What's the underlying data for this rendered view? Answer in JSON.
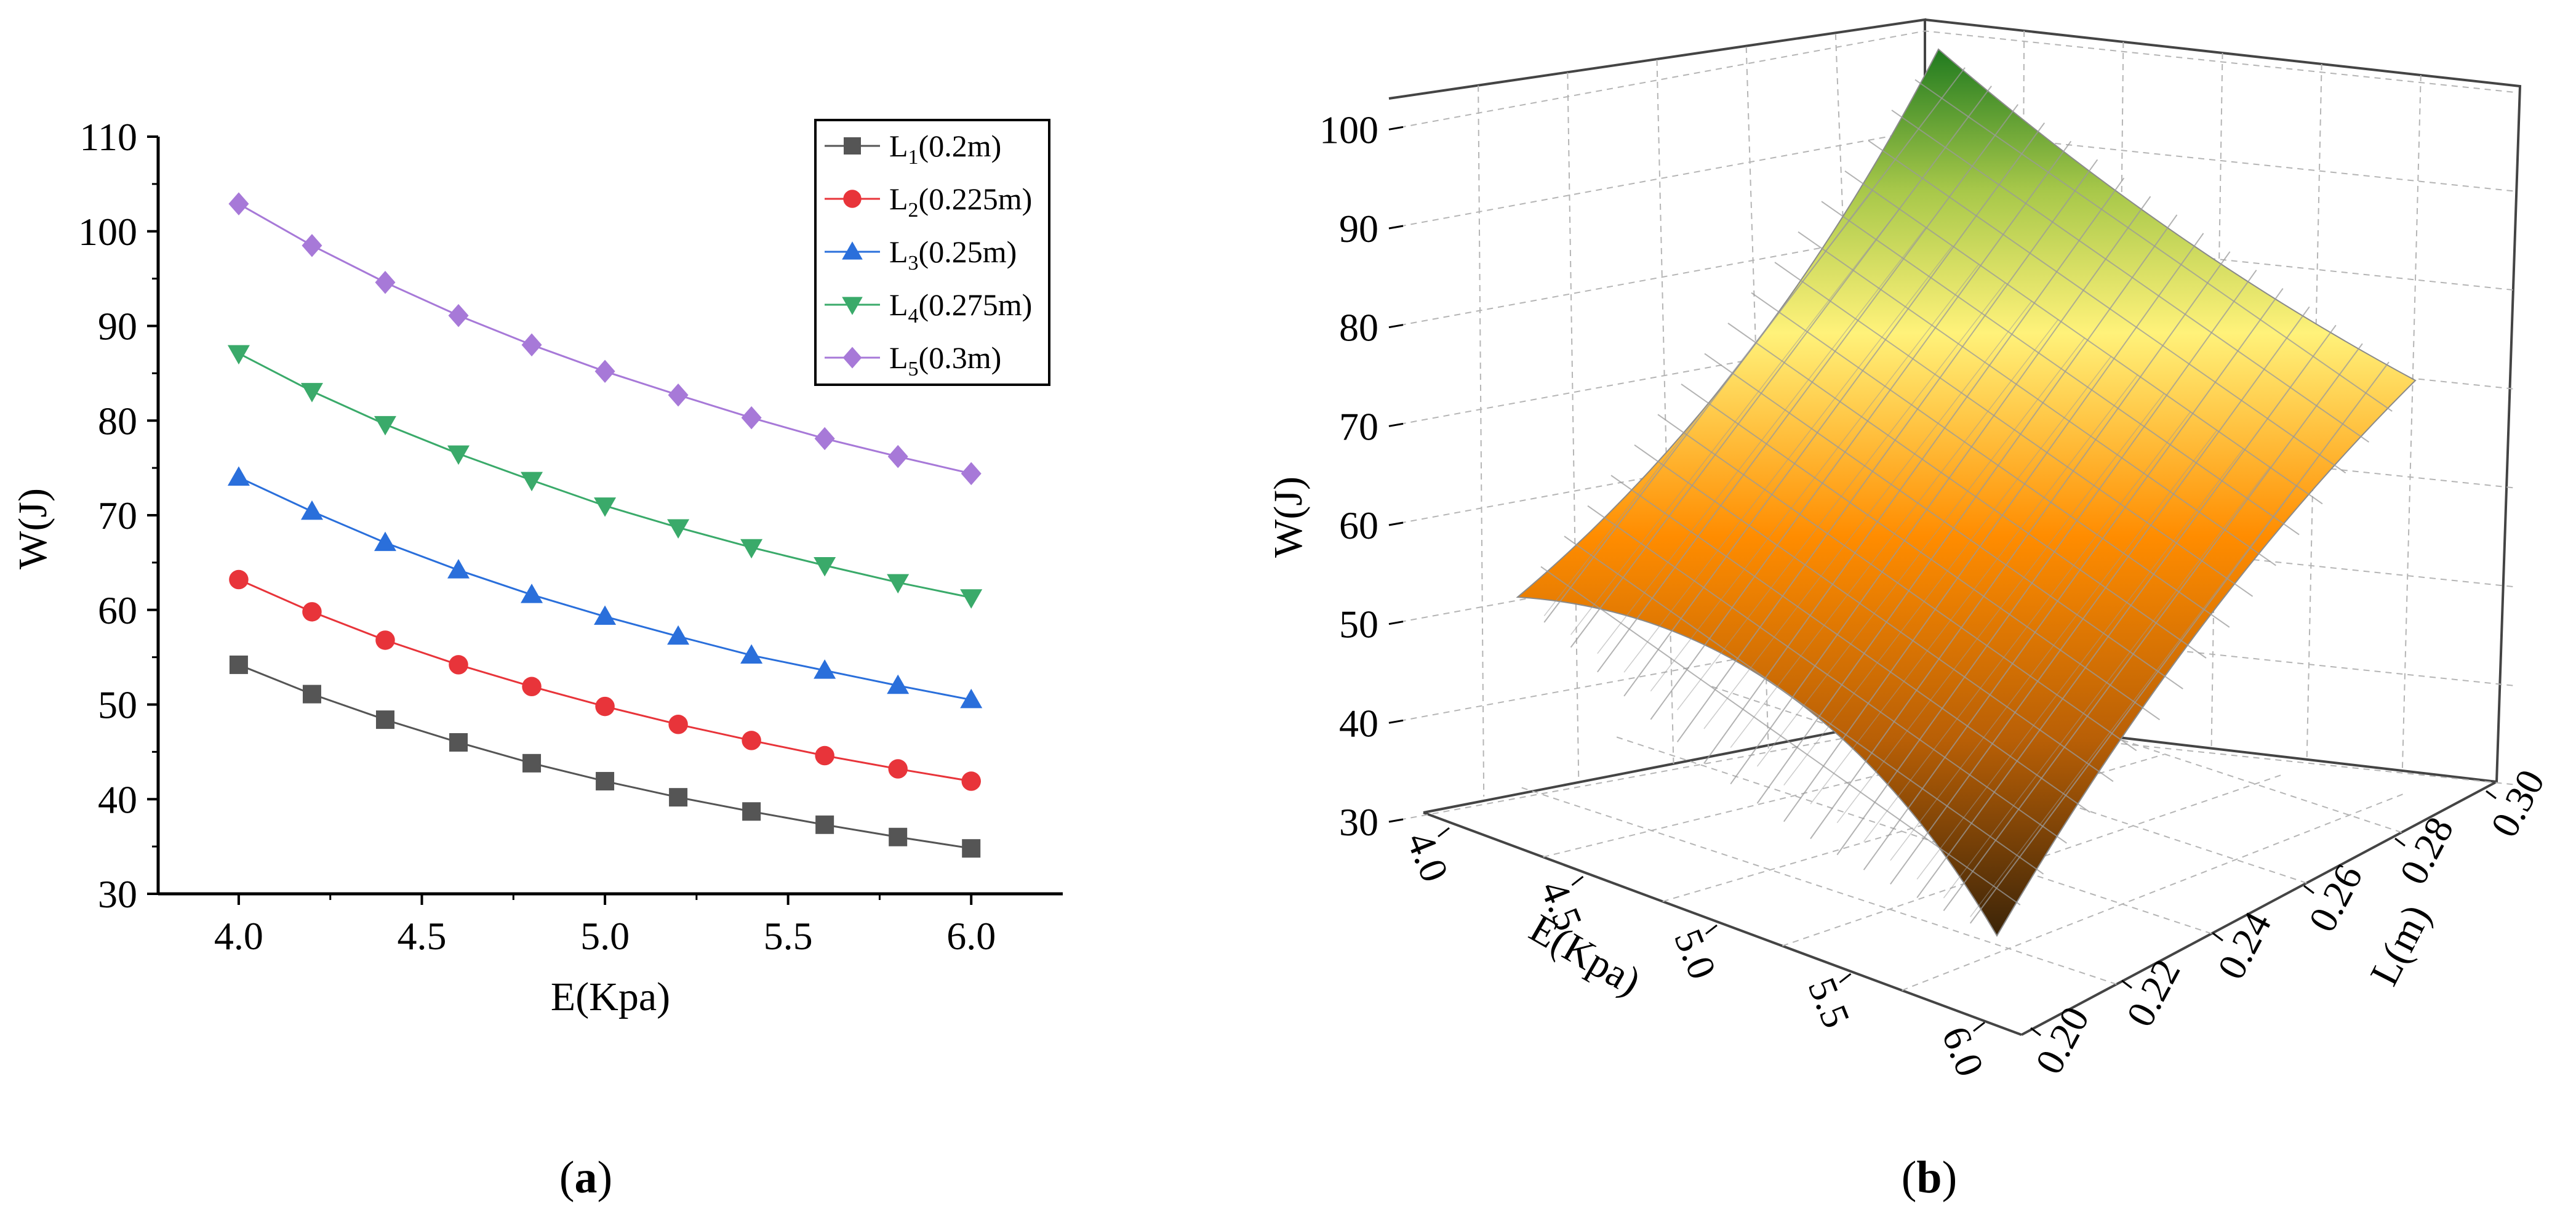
{
  "panel_a": {
    "label_open": "(",
    "label_letter": "a",
    "label_close": ")"
  },
  "panel_b": {
    "label_open": "(",
    "label_letter": "b",
    "label_close": ")"
  },
  "chart_data": [
    {
      "type": "line",
      "title": "",
      "xlabel": "E(Kpa)",
      "ylabel": "W(J)",
      "xlim": [
        3.78,
        6.25
      ],
      "ylim": [
        30,
        110
      ],
      "x_ticks": [
        "4.0",
        "4.5",
        "5.0",
        "5.5",
        "6.0"
      ],
      "y_ticks": [
        "30",
        "40",
        "50",
        "60",
        "70",
        "80",
        "90",
        "100",
        "110"
      ],
      "x": [
        4.0,
        4.2,
        4.4,
        4.6,
        4.8,
        5.0,
        5.2,
        5.4,
        5.6,
        5.8,
        6.0
      ],
      "legend_position": "top-right",
      "series": [
        {
          "name": "L1(0.2m)",
          "legend_main": "L",
          "legend_sub": "1",
          "legend_rest": "(0.2m)",
          "color": "#555555",
          "marker": "square",
          "values": [
            54.2,
            51.1,
            48.4,
            46.0,
            43.8,
            41.9,
            40.2,
            38.7,
            37.3,
            36.0,
            34.8
          ]
        },
        {
          "name": "L2(0.225m)",
          "legend_main": "L",
          "legend_sub": "2",
          "legend_rest": "(0.225m)",
          "color": "#e8343a",
          "marker": "circle",
          "values": [
            63.2,
            59.8,
            56.8,
            54.2,
            51.9,
            49.8,
            47.9,
            46.2,
            44.6,
            43.2,
            41.9
          ]
        },
        {
          "name": "L3(0.25m)",
          "legend_main": "L",
          "legend_sub": "3",
          "legend_rest": "(0.25m)",
          "color": "#2a6fdb",
          "marker": "triangle-up",
          "values": [
            74.0,
            70.4,
            67.1,
            64.2,
            61.6,
            59.3,
            57.2,
            55.2,
            53.6,
            52.0,
            50.5
          ]
        },
        {
          "name": "L4(0.275m)",
          "legend_main": "L",
          "legend_sub": "4",
          "legend_rest": "(0.275m)",
          "color": "#3aaa6a",
          "marker": "triangle-down",
          "values": [
            87.1,
            83.1,
            79.6,
            76.5,
            73.7,
            71.0,
            68.7,
            66.6,
            64.7,
            62.9,
            61.3
          ]
        },
        {
          "name": "L5(0.3m)",
          "legend_main": "L",
          "legend_sub": "5",
          "legend_rest": "(0.3m)",
          "color": "#a779d8",
          "marker": "diamond",
          "values": [
            102.9,
            98.5,
            94.6,
            91.1,
            88.0,
            85.2,
            82.7,
            80.3,
            78.1,
            76.2,
            74.4
          ]
        }
      ]
    },
    {
      "type": "surface3d",
      "title": "",
      "xlabel": "E(Kpa)",
      "ylabel": "L(m)",
      "zlabel": "W(J)",
      "xlim": [
        4.0,
        6.0
      ],
      "ylim": [
        0.2,
        0.3
      ],
      "zlim": [
        30,
        105
      ],
      "x_ticks": [
        "4.0",
        "4.5",
        "5.0",
        "5.5",
        "6.0"
      ],
      "y_ticks": [
        "0.20",
        "0.22",
        "0.24",
        "0.26",
        "0.28",
        "0.30"
      ],
      "z_ticks": [
        "30",
        "40",
        "50",
        "60",
        "70",
        "80",
        "90",
        "100"
      ],
      "corners": [
        {
          "E": 4.0,
          "L": 0.2,
          "W": 54.2
        },
        {
          "E": 6.0,
          "L": 0.2,
          "W": 34.8
        },
        {
          "E": 4.0,
          "L": 0.3,
          "W": 102.9
        },
        {
          "E": 6.0,
          "L": 0.3,
          "W": 74.4
        }
      ],
      "colormap": [
        "#3b2408",
        "#ff8c00",
        "#fff27a",
        "#1f7a1f"
      ]
    }
  ]
}
